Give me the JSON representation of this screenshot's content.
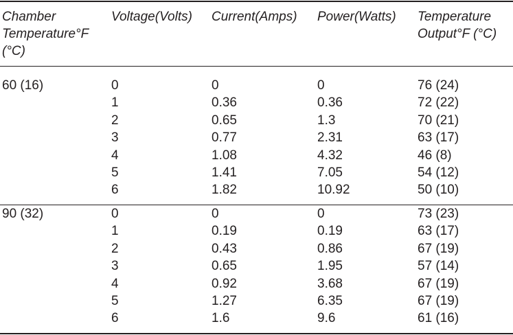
{
  "table": {
    "headers": [
      "Chamber\nTemperature°F\n(°C)",
      "Voltage(Volts)",
      "Current(Amps)",
      "Power(Watts)",
      "Temperature\nOutput°F (°C)"
    ],
    "groups": [
      {
        "chamber": "60 (16)",
        "rows": [
          [
            "0",
            "0",
            "0",
            "76 (24)"
          ],
          [
            "1",
            "0.36",
            "0.36",
            "72 (22)"
          ],
          [
            "2",
            "0.65",
            "1.3",
            "70 (21)"
          ],
          [
            "3",
            "0.77",
            "2.31",
            "63 (17)"
          ],
          [
            "4",
            "1.08",
            "4.32",
            "46 (8)"
          ],
          [
            "5",
            "1.41",
            "7.05",
            "54 (12)"
          ],
          [
            "6",
            "1.82",
            "10.92",
            "50 (10)"
          ]
        ]
      },
      {
        "chamber": "90 (32)",
        "rows": [
          [
            "0",
            "0",
            "0",
            "73 (23)"
          ],
          [
            "1",
            "0.19",
            "0.19",
            "63 (17)"
          ],
          [
            "2",
            "0.43",
            "0.86",
            "67 (19)"
          ],
          [
            "3",
            "0.65",
            "1.95",
            "57 (14)"
          ],
          [
            "4",
            "0.92",
            "3.68",
            "67 (19)"
          ],
          [
            "5",
            "1.27",
            "6.35",
            "67 (19)"
          ],
          [
            "6",
            "1.6",
            "9.6",
            "61 (16)"
          ]
        ]
      }
    ]
  }
}
